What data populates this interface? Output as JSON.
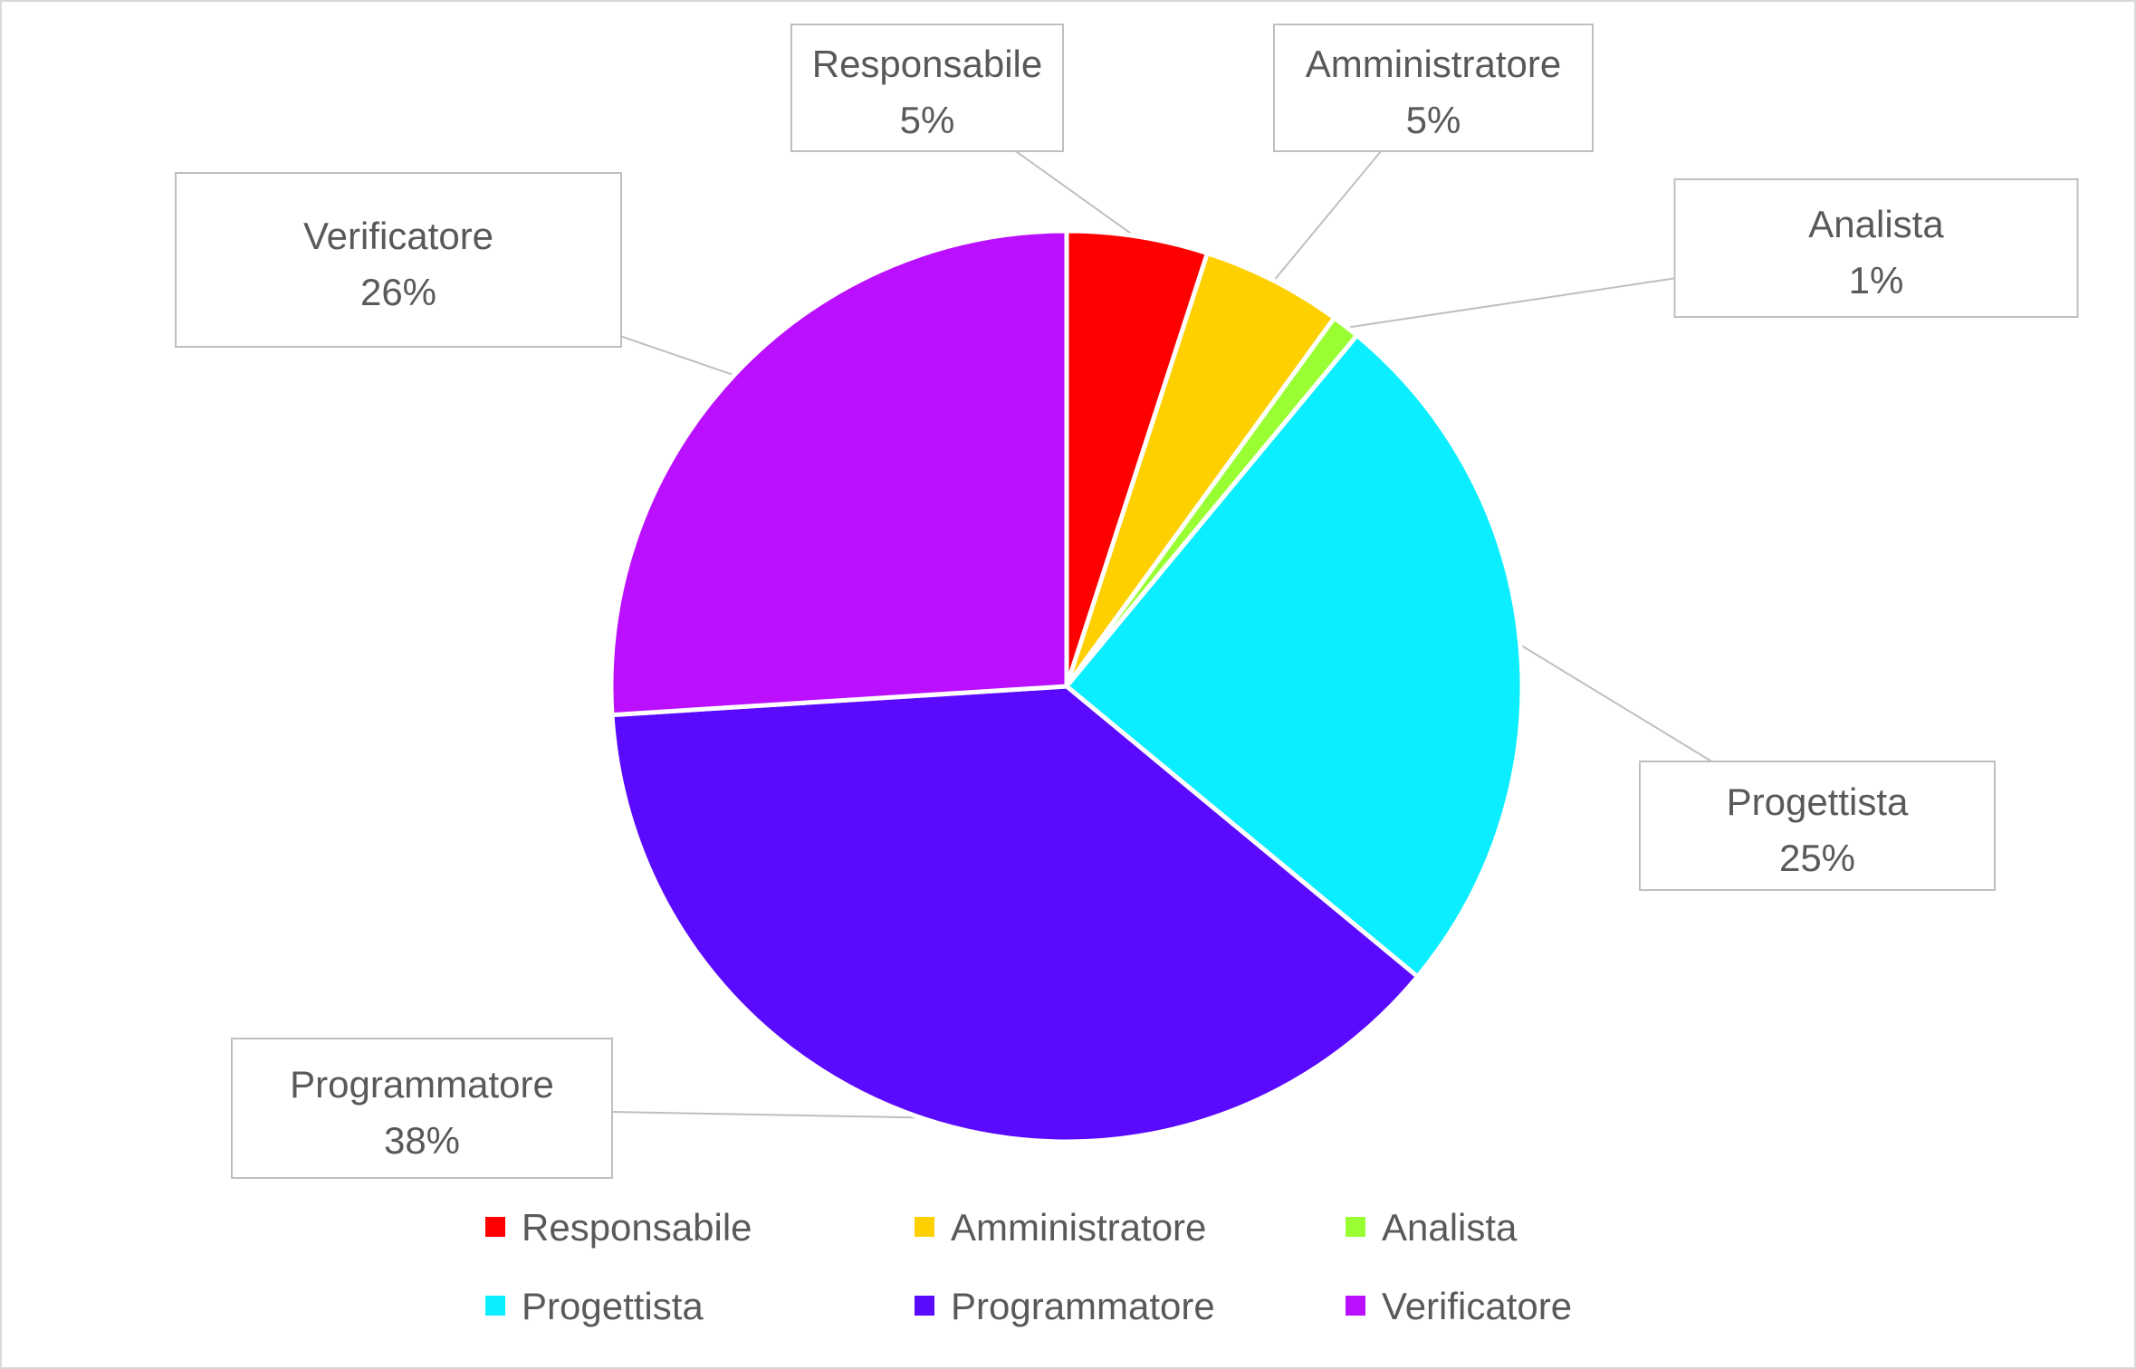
{
  "chart_data": {
    "type": "pie",
    "title": "",
    "categories": [
      "Responsabile",
      "Amministratore",
      "Analista",
      "Progettista",
      "Programmatore",
      "Verificatore"
    ],
    "values": [
      5,
      5,
      1,
      25,
      38,
      26
    ],
    "value_labels": [
      "5%",
      "5%",
      "1%",
      "25%",
      "38%",
      "26%"
    ],
    "colors": [
      "#ff0000",
      "#ffd000",
      "#99ff33",
      "#0aeeff",
      "#5a0aff",
      "#bb0fff"
    ],
    "start_angle_deg": 0,
    "direction": "clockwise",
    "legend_position": "bottom",
    "data_labels": "callouts"
  }
}
